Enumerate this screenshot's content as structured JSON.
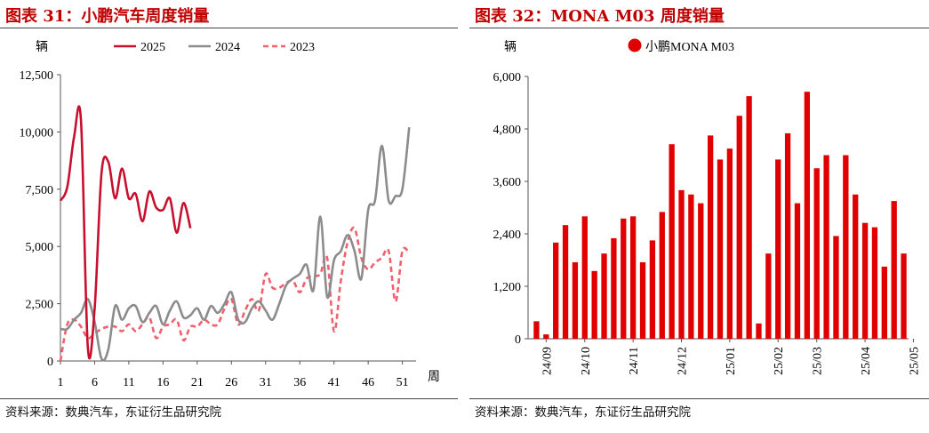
{
  "left": {
    "title": "图表 31：小鹏汽车周度销量",
    "source": "资料来源：数典汽车，东证衍生品研究院",
    "chart_data": {
      "type": "line",
      "ylabel": "辆",
      "xlabel": "周",
      "ylim": [
        0,
        12500
      ],
      "xlim": [
        1,
        53
      ],
      "yticks": [
        0,
        2500,
        5000,
        7500,
        10000,
        12500
      ],
      "ytick_labels": [
        "0",
        "2,500",
        "5,000",
        "7,500",
        "10,000",
        "12,500"
      ],
      "xticks": [
        1,
        6,
        11,
        16,
        21,
        26,
        31,
        36,
        41,
        46,
        51
      ],
      "xtick_labels": [
        "1",
        "6",
        "11",
        "16",
        "21",
        "26",
        "31",
        "36",
        "41",
        "46",
        "51"
      ],
      "series": [
        {
          "name": "2025",
          "color": "#c8102e",
          "dash": "none",
          "x": [
            1,
            2,
            3,
            4,
            5,
            6,
            7,
            8,
            9,
            10,
            11,
            12,
            13,
            14,
            15,
            16,
            17,
            18,
            19,
            20
          ],
          "values": [
            7000,
            7600,
            9800,
            10500,
            600,
            2300,
            8200,
            8700,
            7100,
            8400,
            7100,
            7300,
            6100,
            7400,
            6700,
            6600,
            7100,
            5600,
            6900,
            5800
          ]
        },
        {
          "name": "2024",
          "color": "#8c8c8c",
          "dash": "none",
          "x": [
            1,
            2,
            3,
            4,
            5,
            6,
            7,
            8,
            9,
            10,
            11,
            12,
            13,
            14,
            15,
            16,
            17,
            18,
            19,
            20,
            21,
            22,
            23,
            24,
            25,
            26,
            27,
            28,
            29,
            30,
            31,
            32,
            33,
            34,
            35,
            36,
            37,
            38,
            39,
            40,
            41,
            42,
            43,
            44,
            45,
            46,
            47,
            48,
            49,
            50,
            51,
            52
          ],
          "values": [
            1400,
            1400,
            1800,
            2100,
            2700,
            1700,
            100,
            500,
            2400,
            1800,
            2300,
            2400,
            1700,
            2100,
            2400,
            1600,
            2200,
            2600,
            1900,
            2000,
            2300,
            1800,
            2400,
            2100,
            2500,
            3000,
            1800,
            1700,
            2300,
            2600,
            2200,
            1800,
            2500,
            3300,
            3600,
            3800,
            4200,
            3100,
            6300,
            2800,
            4400,
            4800,
            5500,
            4800,
            3600,
            6600,
            7000,
            9400,
            7000,
            7200,
            7500,
            10200
          ]
        },
        {
          "name": "2023",
          "color": "#f0606e",
          "dash": "6,4",
          "x": [
            1,
            2,
            3,
            4,
            5,
            6,
            7,
            8,
            9,
            10,
            11,
            12,
            13,
            14,
            15,
            16,
            17,
            18,
            19,
            20,
            21,
            22,
            23,
            24,
            25,
            26,
            27,
            28,
            29,
            30,
            31,
            32,
            33,
            34,
            35,
            36,
            37,
            38,
            39,
            40,
            41,
            42,
            43,
            44,
            45,
            46,
            47,
            48,
            49,
            50,
            51,
            52
          ],
          "values": [
            0,
            1600,
            1800,
            1500,
            1000,
            1200,
            1400,
            1500,
            1500,
            1300,
            1600,
            1300,
            1600,
            1900,
            1000,
            1500,
            1600,
            1800,
            900,
            1500,
            1500,
            1800,
            1600,
            1600,
            2300,
            2700,
            1600,
            2200,
            2700,
            2200,
            3800,
            3200,
            3200,
            3400,
            3500,
            3000,
            3600,
            3700,
            3800,
            4500,
            1300,
            3500,
            5200,
            5800,
            4500,
            4000,
            4300,
            4500,
            4800,
            2600,
            4800,
            4700
          ]
        }
      ]
    }
  },
  "right": {
    "title": "图表 32：MONA M03 周度销量",
    "source": "资料来源：数典汽车，东证衍生品研究院",
    "chart_data": {
      "type": "bar",
      "ylabel": "辆",
      "legend": "小鹏MONA M03",
      "color": "#e00000",
      "ylim": [
        0,
        6000
      ],
      "yticks": [
        0,
        1200,
        2400,
        3600,
        4800,
        6000
      ],
      "ytick_labels": [
        "0",
        "1,200",
        "2,400",
        "3,600",
        "4,800",
        "6,000"
      ],
      "xtick_labels": [
        "24/09",
        "24/10",
        "24/11",
        "24/12",
        "25/01",
        "25/02",
        "25/03",
        "25/04",
        "25/05"
      ],
      "xtick_index": [
        1,
        5,
        10,
        15,
        20,
        25,
        29,
        34,
        39
      ],
      "values": [
        400,
        100,
        2200,
        2600,
        1750,
        2800,
        1550,
        1950,
        2300,
        2750,
        2800,
        1750,
        2250,
        2900,
        4450,
        3400,
        3300,
        3100,
        4650,
        4100,
        4350,
        5100,
        5550,
        350,
        1950,
        4100,
        4700,
        3100,
        5650,
        3900,
        4200,
        2350,
        4200,
        3300,
        2650,
        2550,
        1650,
        3150,
        1950
      ]
    }
  }
}
